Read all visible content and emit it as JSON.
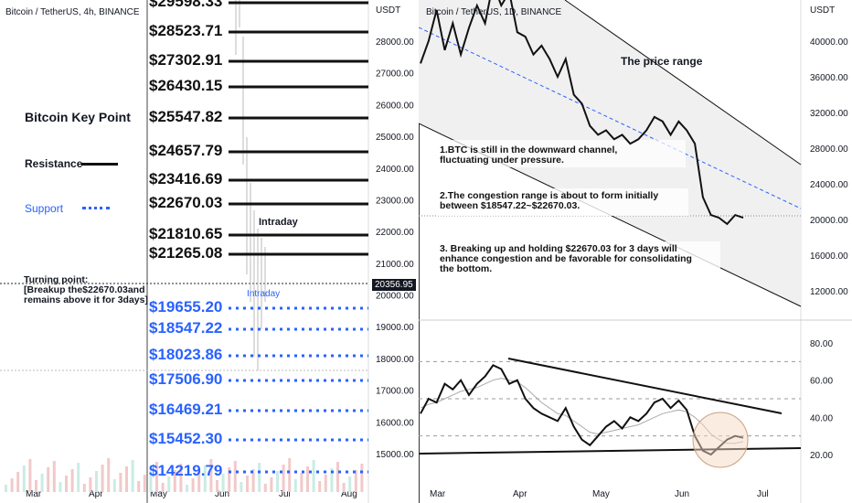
{
  "left": {
    "header": "Bitcoin / TetherUS, 4h, BINANCE",
    "currency": "USDT",
    "key_point_title": "Bitcoin Key Point",
    "legend_resistance": "Resistance",
    "legend_support": "Support",
    "turning_point_text": "Turning point:\n[Breakup the$22670.03and\nremains above it for 3days]",
    "intraday_label_1": "Intraday",
    "intraday_label_2": "Intraday",
    "current_price": "20356.95",
    "colors": {
      "resistance": "#111111",
      "support": "#2962ff"
    }
  },
  "right": {
    "header": "Bitcoin / TetherUS, 1D, BINANCE",
    "currency": "USDT",
    "price_range_label": "The price range",
    "note_1": "1.BTC is still in the downward channel,\nfluctuating under pressure.",
    "note_2": "2.The congestion range is about to form initially\nbetween $18547.22~$22670.03.",
    "note_3": "3. Breaking up and holding $22670.03 for 3 days will\nenhance congestion and be favorable for consolidating\nthe bottom.",
    "colors": {
      "price": "#111111",
      "trend": "#2962ff",
      "channel_fill": "#f0f0f0"
    }
  },
  "chart_data": [
    {
      "type": "line",
      "title": "Bitcoin / TetherUS, 4h, BINANCE",
      "x_ticks": [
        "Mar",
        "Apr",
        "May",
        "Jun",
        "Jul",
        "Aug"
      ],
      "y_ticks": [
        28000,
        27000,
        26000,
        25000,
        24000,
        23000,
        22000,
        21000,
        20000,
        19000,
        18000,
        17000,
        16000,
        15000
      ],
      "ylim": [
        14219.79,
        29598.33
      ],
      "resistance_levels": [
        "$29598.33",
        "$28523.71",
        "$27302.91",
        "$26430.15",
        "$25547.82",
        "$24657.79",
        "$23416.69",
        "$22670.03",
        "$21810.65",
        "$21265.08"
      ],
      "resistance_values": [
        29598.33,
        28523.71,
        27302.91,
        26430.15,
        25547.82,
        24657.79,
        23416.69,
        22670.03,
        21810.65,
        21265.08
      ],
      "support_levels": [
        "$19655.20",
        "$18547.22",
        "$18023.86",
        "$17506.90",
        "$16469.21",
        "$15452.30",
        "$14219.79"
      ],
      "support_values": [
        19655.2,
        18547.22,
        18023.86,
        17506.9,
        16469.21,
        15452.3,
        14219.79
      ],
      "last_price": 20356.95
    },
    {
      "type": "line",
      "title": "Bitcoin / TetherUS, 1D, BINANCE",
      "x_ticks": [
        "Mar",
        "Apr",
        "May",
        "Jun",
        "Jul"
      ],
      "y_ticks": [
        40000,
        36000,
        32000,
        28000,
        24000,
        20000,
        16000,
        12000
      ],
      "ylim": [
        10000,
        43000
      ],
      "price": [
        37500,
        40000,
        43500,
        39000,
        42000,
        38500,
        41500,
        44000,
        42000,
        46500,
        44000,
        45500,
        41000,
        40500,
        38500,
        39500,
        38000,
        36000,
        38000,
        34000,
        33000,
        30500,
        29500,
        30000,
        29000,
        29500,
        28500,
        29000,
        30000,
        31500,
        31000,
        29500,
        31000,
        30000,
        28500,
        22500,
        20500,
        20200,
        19500,
        20500,
        20200
      ]
    },
    {
      "type": "line",
      "title": "",
      "y_ticks": [
        80,
        60,
        40,
        20
      ],
      "ylim": [
        10,
        90
      ],
      "rsi": [
        42,
        50,
        48,
        58,
        55,
        60,
        52,
        58,
        62,
        68,
        66,
        58,
        60,
        50,
        45,
        42,
        40,
        38,
        45,
        35,
        28,
        25,
        30,
        35,
        38,
        34,
        40,
        38,
        42,
        48,
        50,
        45,
        49,
        44,
        30,
        22,
        20,
        24,
        28,
        30,
        29
      ],
      "rsi_ma": [
        45,
        47,
        48,
        50,
        52,
        54,
        55,
        56,
        58,
        60,
        61,
        60,
        59,
        56,
        52,
        48,
        45,
        42,
        41,
        38,
        35,
        32,
        31,
        32,
        33,
        34,
        35,
        36,
        38,
        40,
        42,
        43,
        44,
        43,
        40,
        36,
        31,
        28,
        26,
        26,
        27
      ],
      "reference_lines": [
        70,
        50,
        30
      ]
    }
  ]
}
